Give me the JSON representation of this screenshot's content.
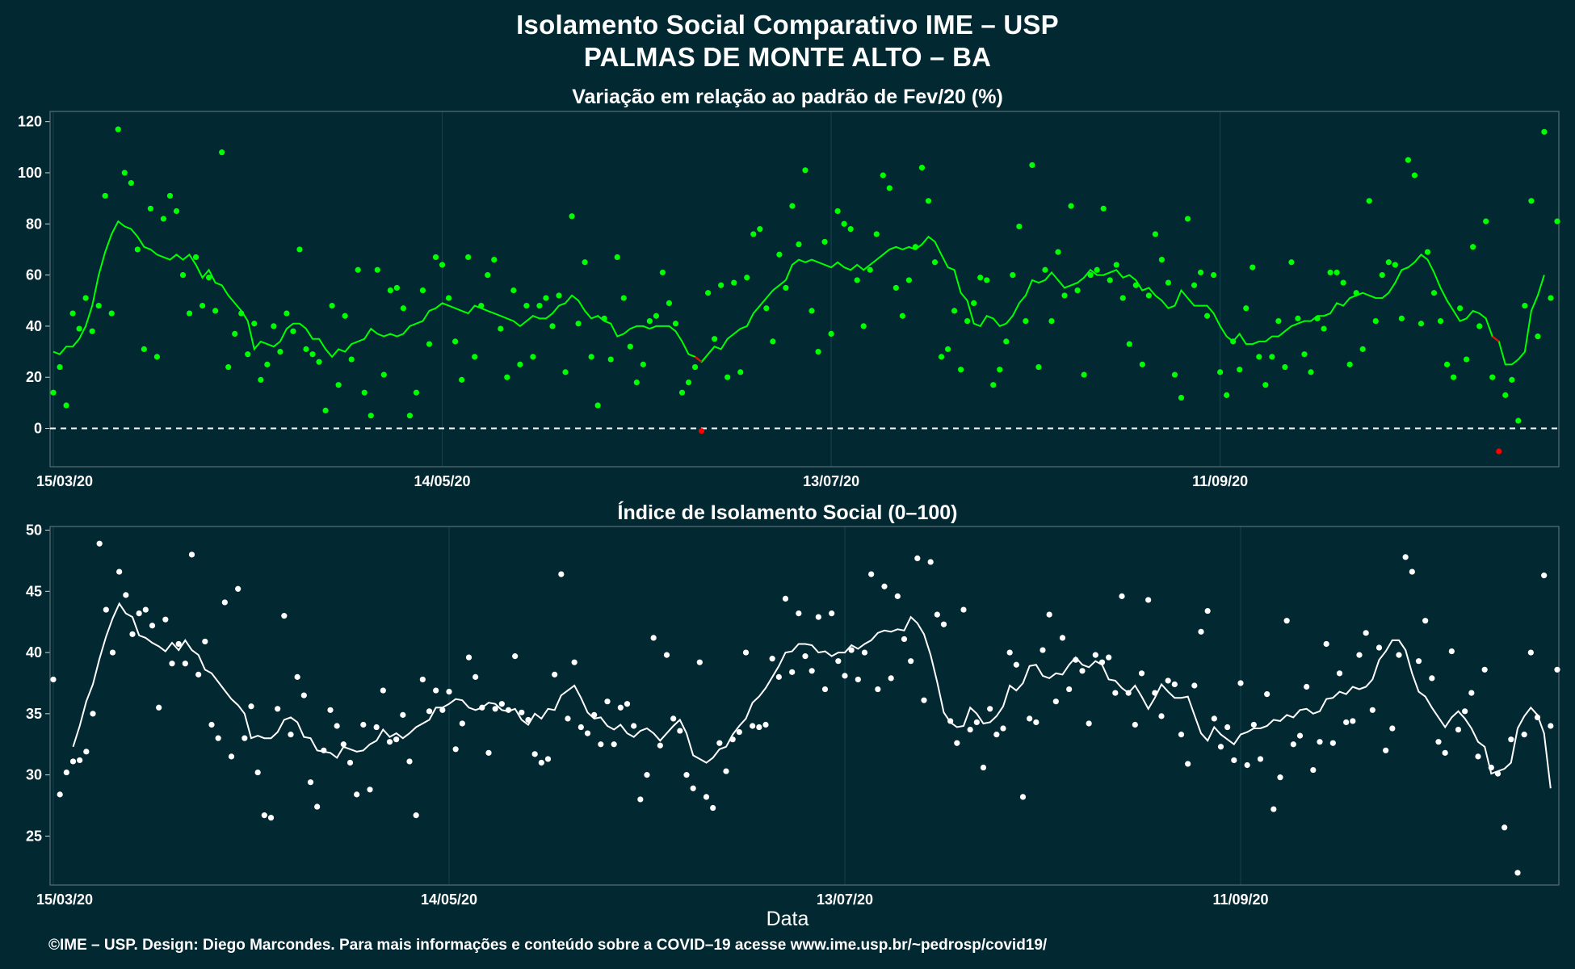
{
  "title_line1": "Isolamento Social Comparativo IME – USP",
  "title_line2": "PALMAS DE MONTE ALTO – BA",
  "xlabel": "Data",
  "caption": "©IME – USP. Design: Diego Marcondes. Para mais informações e conteúdo sobre a COVID–19 acesse www.ime.usp.br/~pedrosp/covid19/",
  "colors": {
    "background": "#022832",
    "panel_border": "#5b6e74",
    "grid": "#12404a",
    "top_points": "#00ff00",
    "top_line": "#00ff00",
    "negative": "#ff0000",
    "bottom_points": "#ffffff",
    "bottom_line": "#ffffff"
  },
  "chart_data": [
    {
      "type": "scatter",
      "title": "Variação em relação ao padrão de Fev/20 (%)",
      "xlabel": "",
      "ylabel": "",
      "x_start": "15/03/20",
      "x_end": "31/10/20",
      "x_ticks": [
        "15/03/20",
        "14/05/20",
        "13/07/20",
        "11/09/20"
      ],
      "y_ticks": [
        0,
        20,
        40,
        60,
        80,
        100,
        120
      ],
      "ylim": [
        -15,
        124
      ],
      "reference_line": 0,
      "series": [
        {
          "role": "points",
          "values": [
            14,
            24,
            9,
            45,
            39,
            51,
            38,
            48,
            91,
            45,
            117,
            100,
            96,
            70,
            31,
            86,
            28,
            82,
            91,
            85,
            60,
            45,
            67,
            48,
            59,
            46,
            108,
            24,
            37,
            45,
            29,
            41,
            19,
            25,
            40,
            30,
            45,
            38,
            70,
            31,
            29,
            26,
            7,
            48,
            17,
            44,
            27,
            62,
            14,
            5,
            62,
            21,
            54,
            55,
            47,
            5,
            14,
            54,
            33,
            67,
            64,
            51,
            34,
            19,
            67,
            28,
            48,
            60,
            66,
            39,
            20,
            54,
            25,
            48,
            28,
            48,
            51,
            40,
            52,
            22,
            83,
            41,
            65,
            28,
            9,
            43,
            27,
            67,
            51,
            32,
            18,
            25,
            42,
            44,
            61,
            49,
            41,
            14,
            18,
            24,
            -1,
            53,
            35,
            56,
            20,
            57,
            22,
            59,
            76,
            78,
            47,
            34,
            68,
            55,
            87,
            72,
            101,
            46,
            30,
            73,
            37,
            85,
            80,
            78,
            58,
            40,
            62,
            76,
            99,
            94,
            55,
            44,
            58,
            71,
            102,
            89,
            65,
            28,
            31,
            46,
            23,
            42,
            49,
            59,
            58,
            17,
            23,
            34,
            60,
            79,
            42,
            103,
            24,
            62,
            42,
            69,
            52,
            87,
            54,
            21,
            60,
            62,
            86,
            58,
            64,
            51,
            33,
            56,
            25,
            52,
            76,
            66,
            57,
            21,
            12,
            82,
            56,
            61,
            44,
            60,
            22,
            13,
            34,
            23,
            47,
            63,
            28,
            17,
            28,
            42,
            24,
            65,
            43,
            29,
            22,
            43,
            39,
            61,
            61,
            57,
            25,
            53,
            31,
            89,
            42,
            60,
            65,
            64,
            43,
            105,
            99,
            41,
            69,
            53,
            42,
            25,
            20,
            47,
            27,
            71,
            40,
            81,
            20,
            -9,
            13,
            19,
            3,
            48,
            89,
            36,
            116,
            51,
            81
          ],
          "negative_values": [
            -1,
            -9
          ]
        },
        {
          "role": "moving-average",
          "values": [
            30,
            29,
            32,
            32,
            35,
            40,
            48,
            60,
            69,
            76,
            81,
            79,
            78,
            75,
            71,
            70,
            68,
            67,
            66,
            68,
            66,
            68,
            64,
            59,
            62,
            57,
            56,
            52,
            49,
            46,
            42,
            31,
            34,
            33,
            32,
            34,
            39,
            41,
            41,
            39,
            35,
            35,
            31,
            28,
            31,
            30,
            33,
            34,
            35,
            39,
            37,
            36,
            37,
            36,
            37,
            40,
            41,
            42,
            46,
            47,
            49,
            48,
            47,
            46,
            45,
            48,
            47,
            46,
            45,
            44,
            43,
            42,
            40,
            42,
            44,
            43,
            43,
            45,
            48,
            49,
            52,
            50,
            46,
            43,
            44,
            42,
            41,
            36,
            37,
            39,
            40,
            40,
            39,
            40,
            40,
            40,
            38,
            34,
            29,
            28,
            26,
            29,
            32,
            31,
            35,
            37,
            39,
            40,
            45,
            48,
            51,
            54,
            56,
            58,
            64,
            66,
            65,
            66,
            65,
            64,
            63,
            65,
            63,
            62,
            64,
            62,
            64,
            66,
            68,
            70,
            71,
            70,
            71,
            70,
            72,
            75,
            73,
            68,
            63,
            62,
            53,
            50,
            41,
            40,
            44,
            43,
            40,
            41,
            44,
            49,
            52,
            58,
            57,
            58,
            61,
            58,
            55,
            56,
            57,
            59,
            62,
            60,
            60,
            61,
            62,
            59,
            60,
            58,
            54,
            55,
            52,
            50,
            47,
            48,
            54,
            51,
            48,
            48,
            48,
            45,
            40,
            36,
            34,
            37,
            33,
            33,
            34,
            34,
            36,
            36,
            38,
            40,
            41,
            42,
            42,
            44,
            44,
            45,
            49,
            48,
            51,
            52,
            53,
            52,
            51,
            51,
            53,
            57,
            62,
            63,
            65,
            68,
            66,
            61,
            55,
            50,
            46,
            42,
            43,
            46,
            45,
            43,
            36,
            34,
            25,
            25,
            27,
            30,
            46,
            52,
            60
          ]
        }
      ]
    },
    {
      "type": "scatter",
      "title": "Índice de Isolamento Social (0–100)",
      "xlabel": "Data",
      "ylabel": "",
      "x_start": "15/03/20",
      "x_end": "31/10/20",
      "x_ticks": [
        "15/03/20",
        "14/05/20",
        "13/07/20",
        "11/09/20"
      ],
      "y_ticks": [
        25,
        30,
        35,
        40,
        45,
        50
      ],
      "ylim": [
        21,
        50.3
      ],
      "series": [
        {
          "role": "points",
          "values": [
            37.8,
            28.4,
            30.2,
            31.1,
            31.2,
            31.9,
            35,
            48.9,
            43.5,
            40,
            46.6,
            44.7,
            41.5,
            43.2,
            43.5,
            42.2,
            35.5,
            42.7,
            39.1,
            40.7,
            39.1,
            48,
            38.2,
            40.9,
            34.1,
            33,
            44.1,
            31.5,
            45.2,
            33,
            35.6,
            30.2,
            26.7,
            26.5,
            35.4,
            43,
            33.3,
            38,
            36.5,
            29.4,
            27.4,
            32,
            35.3,
            34,
            32.5,
            31,
            28.4,
            34.1,
            28.8,
            33.9,
            36.9,
            32.7,
            32.9,
            34.9,
            31.1,
            26.7,
            37.8,
            35.2,
            36.9,
            35.3,
            36.8,
            32.1,
            34.2,
            39.6,
            38,
            35.5,
            31.8,
            35.4,
            35.8,
            35.3,
            39.7,
            35.1,
            34.5,
            31.7,
            31,
            31.3,
            38.2,
            46.4,
            34.6,
            39.2,
            33.9,
            33.4,
            34.9,
            32.5,
            36,
            32.5,
            35.5,
            35.8,
            34,
            28,
            30,
            41.2,
            32.4,
            39.8,
            34.6,
            33.6,
            30,
            28.9,
            39.2,
            28.2,
            27.3,
            32.6,
            30.3,
            32.9,
            33.5,
            40,
            34,
            33.9,
            34.1,
            39.5,
            38,
            44.4,
            38.4,
            43.2,
            39.7,
            38.5,
            42.9,
            37,
            43.2,
            39.3,
            38.1,
            40.2,
            37.8,
            40,
            46.4,
            37,
            45.4,
            37.9,
            44.6,
            41.1,
            39.3,
            47.7,
            36.1,
            47.4,
            43.1,
            42.3,
            34.4,
            32.6,
            43.5,
            33.7,
            34.3,
            30.6,
            35.4,
            33.3,
            33.8,
            40,
            39,
            28.2,
            34.6,
            34.3,
            40.2,
            43.1,
            36,
            41.2,
            37,
            39.4,
            38.5,
            34.2,
            39.8,
            39.2,
            39.6,
            36.7,
            44.6,
            36.7,
            34.1,
            38.3,
            44.3,
            36.7,
            34.8,
            37.7,
            37.4,
            33.3,
            30.9,
            37.3,
            41.7,
            43.4,
            34.6,
            32.3,
            33.9,
            31.2,
            37.5,
            30.8,
            34.1,
            31.3,
            36.6,
            27.2,
            29.8,
            42.6,
            32.5,
            33.2,
            37.2,
            30.4,
            32.7,
            40.7,
            32.6,
            38.3,
            34.3,
            34.4,
            39.8,
            41.6,
            35.3,
            40.4,
            32,
            33.8,
            39.8,
            47.8,
            46.6,
            39.3,
            42.6,
            37.9,
            32.7,
            31.8,
            40.1,
            33.7,
            35.2,
            36.7,
            31.5,
            38.6,
            30.6,
            30.1,
            25.7,
            32.9,
            22,
            33.3,
            40,
            34.7,
            46.3,
            34,
            38.6
          ]
        },
        {
          "role": "moving-average",
          "values": [
            null,
            null,
            null,
            32.3,
            34,
            36,
            37.4,
            39.5,
            41.3,
            42.8,
            44,
            43.2,
            42.9,
            41.4,
            41.2,
            40.8,
            40.5,
            40.1,
            40.8,
            40.2,
            41,
            40.2,
            39.8,
            38.6,
            38.3,
            37.6,
            36.9,
            36.2,
            35.7,
            35,
            33,
            33.2,
            33,
            33,
            33.5,
            34.5,
            34.7,
            34.3,
            33.1,
            33,
            32,
            31.9,
            31.8,
            31.4,
            32.3,
            32.1,
            31.9,
            32,
            32.5,
            32.8,
            33.7,
            33.1,
            33.4,
            33,
            33.4,
            33.9,
            34.2,
            34.5,
            35.5,
            35.5,
            35.8,
            36.2,
            36.1,
            35.5,
            35.3,
            35.5,
            35.9,
            35.8,
            35.3,
            35.2,
            35.4,
            34.5,
            34.1,
            35,
            34.6,
            35.4,
            35.3,
            36.5,
            36.9,
            37.3,
            36.3,
            35.1,
            34.6,
            34.7,
            34,
            33.7,
            34.1,
            33.4,
            33.1,
            33.6,
            33.8,
            33.4,
            32.8,
            33.4,
            34,
            34.5,
            33.4,
            31.6,
            31.3,
            31,
            31.4,
            32.1,
            32.3,
            33.3,
            34,
            34.6,
            35.9,
            36.4,
            37.1,
            38,
            38.9,
            40,
            40.1,
            40.7,
            40.7,
            40.6,
            40,
            40.1,
            39.7,
            40,
            40,
            40.6,
            40.3,
            40.7,
            41,
            41.6,
            41.8,
            41.7,
            41.9,
            41.8,
            42.9,
            42.4,
            41.5,
            39.8,
            37.6,
            35.1,
            34.3,
            33.9,
            34,
            35.5,
            35,
            34.2,
            34.3,
            34.8,
            35.6,
            37.3,
            36.9,
            37.5,
            38.9,
            39,
            38.1,
            37.9,
            38.3,
            38.2,
            39,
            39.6,
            39,
            38.8,
            39.3,
            39,
            37.8,
            37.7,
            37.1,
            36.7,
            37.3,
            36.4,
            35.4,
            36.3,
            37.4,
            36.8,
            36.3,
            36.3,
            36.4,
            34.9,
            33.4,
            32.8,
            33.9,
            33.3,
            32.9,
            32.5,
            33.3,
            33.5,
            33.8,
            33.8,
            34,
            34.5,
            34.4,
            34.9,
            34.7,
            35.3,
            35.4,
            35,
            35.2,
            36.2,
            36.3,
            36.8,
            36.6,
            37.2,
            37,
            37.2,
            37.8,
            39.4,
            40.1,
            41,
            41,
            40.2,
            38.3,
            36.8,
            36.4,
            35.5,
            34.7,
            33.9,
            34.7,
            35.2,
            34.6,
            33.8,
            32.7,
            32.3,
            30.1,
            30.3,
            30.5,
            31,
            33.8,
            34.8,
            35.5,
            34.9,
            33.4,
            28.9
          ]
        }
      ]
    }
  ]
}
